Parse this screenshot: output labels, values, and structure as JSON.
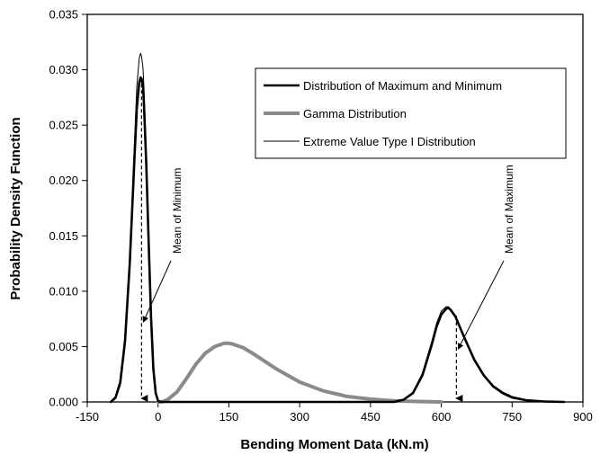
{
  "chart_data": {
    "type": "line",
    "xlabel": "Bending Moment Data  (kN.m)",
    "ylabel": "Probability Density Function",
    "xlim": [
      -150,
      900
    ],
    "ylim": [
      0,
      0.035
    ],
    "xticks": [
      -150,
      0,
      150,
      300,
      450,
      600,
      750,
      900
    ],
    "yticks": [
      0.0,
      0.005,
      0.01,
      0.015,
      0.02,
      0.025,
      0.03,
      0.035
    ],
    "xtick_labels": [
      "-150",
      "0",
      "150",
      "300",
      "450",
      "600",
      "750",
      "900"
    ],
    "ytick_labels": [
      "0.000",
      "0.005",
      "0.010",
      "0.015",
      "0.020",
      "0.025",
      "0.030",
      "0.035"
    ],
    "grid": false,
    "legend_placement": "top-right",
    "series": [
      {
        "name": "Distribution of Maximum and Minimum",
        "style": "thick-black",
        "color": "#000000",
        "x": [
          -100,
          -90,
          -80,
          -70,
          -60,
          -50,
          -45,
          -40,
          -37,
          -35,
          -32,
          -30,
          -25,
          -20,
          -15,
          -10,
          -5,
          0,
          5,
          500,
          520,
          540,
          560,
          580,
          590,
          600,
          610,
          615,
          620,
          630,
          640,
          650,
          670,
          690,
          710,
          730,
          750,
          780,
          820,
          860
        ],
        "y": [
          0,
          0.0004,
          0.0018,
          0.0055,
          0.0125,
          0.022,
          0.0265,
          0.0288,
          0.0293,
          0.0292,
          0.0285,
          0.027,
          0.0215,
          0.0145,
          0.0078,
          0.003,
          0.0008,
          0.0001,
          0,
          0,
          0.0002,
          0.0008,
          0.0024,
          0.0052,
          0.0068,
          0.0079,
          0.0084,
          0.0085,
          0.0083,
          0.0077,
          0.0067,
          0.0057,
          0.0038,
          0.0024,
          0.0014,
          0.0008,
          0.0004,
          0.00015,
          4e-05,
          0
        ]
      },
      {
        "name": "Gamma Distribution",
        "style": "thick-gray",
        "color": "#8a8a8a",
        "x": [
          0,
          10,
          20,
          40,
          60,
          80,
          100,
          120,
          140,
          150,
          160,
          180,
          200,
          225,
          250,
          275,
          300,
          350,
          400,
          450,
          500,
          550,
          600
        ],
        "y": [
          0,
          3e-05,
          0.0002,
          0.0009,
          0.0021,
          0.0034,
          0.0044,
          0.005,
          0.0053,
          0.0053,
          0.0052,
          0.0049,
          0.0044,
          0.0037,
          0.003,
          0.0024,
          0.0018,
          0.001,
          0.0005,
          0.00025,
          0.0001,
          4e-05,
          0
        ]
      },
      {
        "name": "Extreme Value Type I Distribution",
        "style": "thin-black",
        "color": "#000000",
        "x": [
          -100,
          -90,
          -80,
          -70,
          -60,
          -50,
          -45,
          -40,
          -37,
          -35,
          -32,
          -30,
          -25,
          -20,
          -15,
          -10,
          -5,
          0,
          5,
          500,
          520,
          540,
          560,
          580,
          590,
          600,
          610,
          615,
          620,
          630,
          640,
          650,
          670,
          690,
          710,
          730,
          750,
          780,
          820,
          860
        ],
        "y": [
          0,
          0.0003,
          0.0015,
          0.005,
          0.0125,
          0.0235,
          0.0285,
          0.031,
          0.0315,
          0.0312,
          0.0302,
          0.0285,
          0.0225,
          0.0148,
          0.0078,
          0.0028,
          0.0007,
          0.0001,
          0,
          0,
          0.0002,
          0.0009,
          0.0026,
          0.0055,
          0.0071,
          0.0082,
          0.0086,
          0.0086,
          0.0084,
          0.0078,
          0.0068,
          0.0058,
          0.0039,
          0.0025,
          0.0015,
          0.0009,
          0.0005,
          0.0002,
          5e-05,
          0
        ]
      }
    ],
    "annotations": [
      {
        "text": "Mean of Minimum",
        "arrow_x": -35,
        "arrow_from_y": 0.0293,
        "arrow_to_y": 0.0
      },
      {
        "text": "Mean of Maximum",
        "arrow_x": 632,
        "arrow_from_y": 0.0078,
        "arrow_to_y": 0.0
      }
    ]
  }
}
